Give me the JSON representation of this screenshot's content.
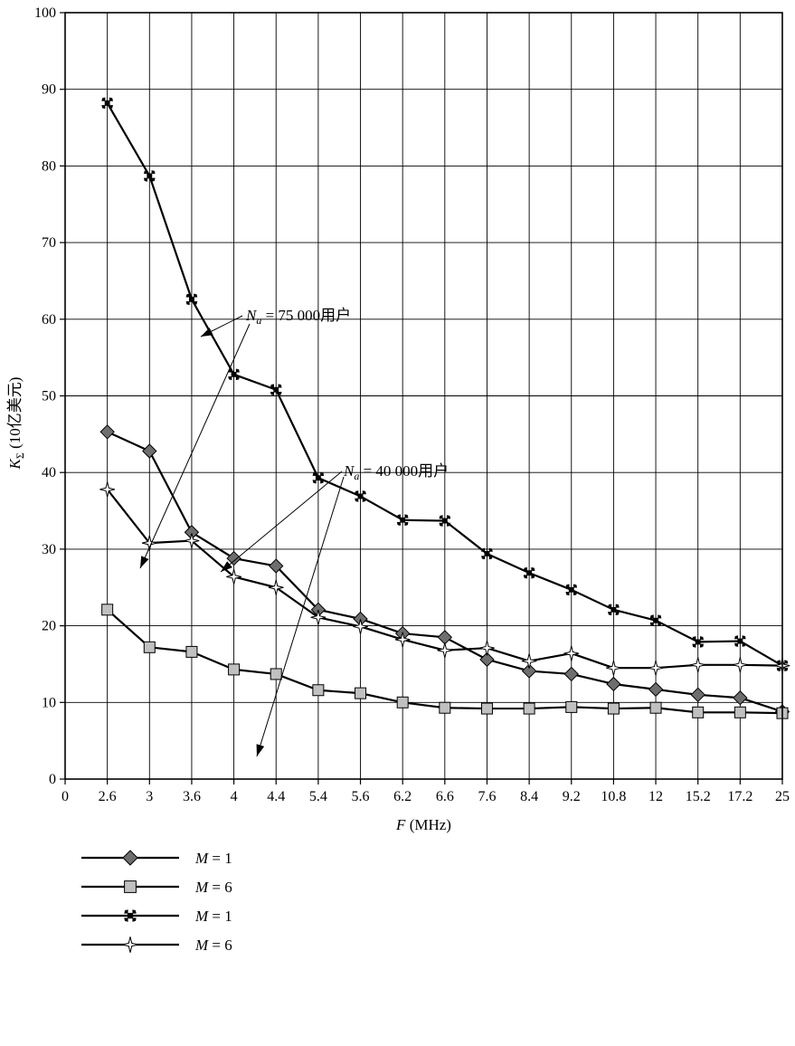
{
  "chart_data": {
    "type": "line",
    "categories": [
      "0",
      "2.6",
      "3",
      "3.6",
      "4",
      "4.4",
      "5.4",
      "5.6",
      "6.2",
      "6.6",
      "7.6",
      "8.4",
      "9.2",
      "10.8",
      "12",
      "15.2",
      "17.2",
      "25"
    ],
    "ylim": [
      0,
      100
    ],
    "yticks": [
      0,
      10,
      20,
      30,
      40,
      50,
      60,
      70,
      80,
      90,
      100
    ],
    "xlabel": {
      "var": "F",
      "unit": " (MHz)"
    },
    "ylabel": {
      "var": "K",
      "sub": "Σ",
      "unit": " (10亿美元)"
    },
    "grid": true,
    "legend_position": "bottom-left",
    "series": [
      {
        "name": "M = 1",
        "var": "M",
        "eq": " = 1",
        "marker": "diamond",
        "color": "#6e6e6e",
        "values": [
          null,
          45.3,
          42.8,
          32.2,
          28.8,
          27.8,
          22.1,
          20.9,
          19.0,
          18.5,
          15.6,
          14.1,
          13.7,
          12.4,
          11.7,
          11.0,
          10.6,
          8.8
        ]
      },
      {
        "name": "M = 6",
        "var": "M",
        "eq": " = 6",
        "marker": "square",
        "color": "#c0c0c0",
        "values": [
          null,
          22.1,
          17.2,
          16.6,
          14.3,
          13.7,
          11.6,
          11.2,
          10.0,
          9.3,
          9.2,
          9.2,
          9.4,
          9.2,
          9.3,
          8.7,
          8.7,
          8.6
        ]
      },
      {
        "name": "M = 1",
        "var": "M",
        "eq": " = 1",
        "marker": "x",
        "color": "#000000",
        "values": [
          null,
          88.2,
          78.7,
          62.6,
          52.8,
          50.8,
          39.3,
          36.9,
          33.8,
          33.7,
          29.4,
          26.9,
          24.7,
          22.1,
          20.7,
          17.9,
          18.0,
          14.8
        ]
      },
      {
        "name": "M = 6",
        "var": "M",
        "eq": " = 6",
        "marker": "star",
        "color": "#ffffff",
        "values": [
          null,
          37.8,
          30.8,
          31.1,
          26.4,
          25.0,
          21.1,
          19.9,
          18.2,
          16.8,
          17.1,
          15.4,
          16.4,
          14.5,
          14.5,
          14.9,
          14.9,
          14.8
        ]
      }
    ],
    "annotations": [
      {
        "var": "N",
        "sub": "a",
        "text": " = 75 000用户"
      },
      {
        "var": "N",
        "sub": "a",
        "text": " = 40 000用户"
      }
    ]
  }
}
